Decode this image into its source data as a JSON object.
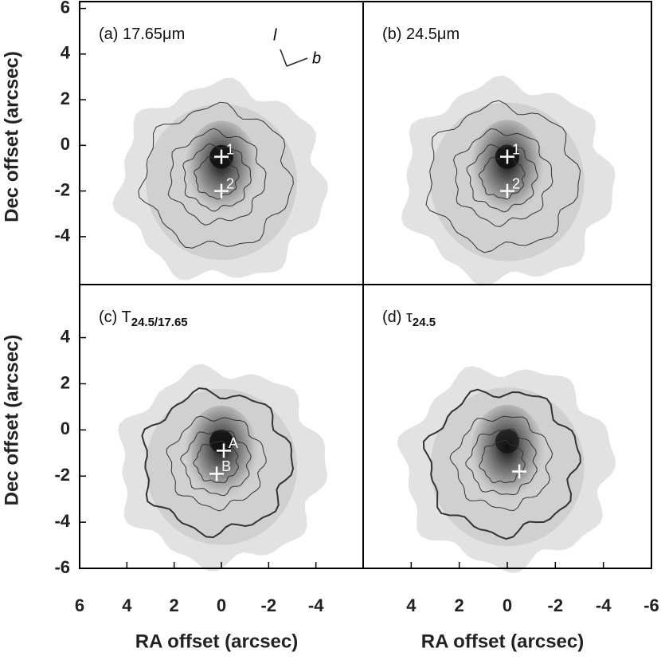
{
  "chart_data": [
    {
      "type": "image",
      "title": "(a) 17.65μm",
      "ylabel": "Dec offset (arcsec)",
      "xlim": [
        6,
        -6
      ],
      "ylim": [
        -6.1,
        6.3
      ],
      "yticks": [
        6,
        4,
        2,
        0,
        -2,
        -4
      ],
      "markers": [
        {
          "x": 0,
          "y": -0.5,
          "label": "1"
        },
        {
          "x": 0,
          "y": -2,
          "label": "2"
        }
      ],
      "orientation": [
        "l",
        "b"
      ]
    },
    {
      "type": "image",
      "title": "(b) 24.5μm",
      "xlim": [
        6,
        -6
      ],
      "ylim": [
        -6.1,
        6.3
      ],
      "markers": [
        {
          "x": 0,
          "y": -0.5,
          "label": "1"
        },
        {
          "x": 0,
          "y": -2,
          "label": "2"
        }
      ]
    },
    {
      "type": "image",
      "title": "(c) T",
      "title_sub": "24.5/17.65",
      "ylabel": "Dec offset (arcsec)",
      "xlabel": "RA offset (arcsec)",
      "xlim": [
        6,
        -6
      ],
      "ylim": [
        -6,
        6.3
      ],
      "xticks": [
        6,
        4,
        2,
        0,
        -2,
        -4
      ],
      "yticks": [
        4,
        2,
        0,
        -2,
        -4,
        -6
      ],
      "markers": [
        {
          "x": -0.1,
          "y": -0.9,
          "label": "A"
        },
        {
          "x": 0.2,
          "y": -1.9,
          "label": "B"
        }
      ]
    },
    {
      "type": "image",
      "title": "(d) τ",
      "title_sub": "24.5",
      "xlabel": "RA offset (arcsec)",
      "xlim": [
        6,
        -6
      ],
      "ylim": [
        -6,
        6.3
      ],
      "xticks": [
        4,
        2,
        0,
        -2,
        -4,
        -6
      ],
      "markers": [
        {
          "x": -0.5,
          "y": -1.8
        }
      ]
    }
  ]
}
